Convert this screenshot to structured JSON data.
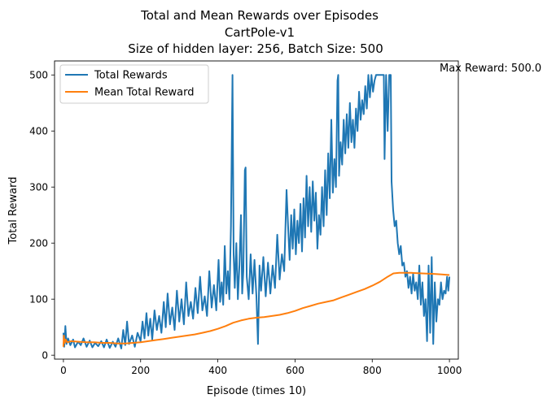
{
  "chart_data": {
    "type": "line",
    "title_lines": [
      "Total and Mean Rewards over Episodes",
      "CartPole-v1",
      "Size of hidden layer: 256, Batch Size: 500"
    ],
    "xlabel": "Episode (times 10)",
    "ylabel": "Total Reward",
    "xlim": [
      -23,
      1023
    ],
    "ylim": [
      -7,
      525
    ],
    "xticks": [
      0,
      200,
      400,
      600,
      800,
      1000
    ],
    "yticks": [
      0,
      100,
      200,
      300,
      400,
      500
    ],
    "legend_position": "upper-left",
    "annotation": "Max Reward: 500.0",
    "grid": false,
    "series": [
      {
        "name": "Total Rewards",
        "color": "#1f77b4",
        "points": [
          [
            0,
            40
          ],
          [
            2,
            15
          ],
          [
            5,
            52
          ],
          [
            8,
            20
          ],
          [
            12,
            30
          ],
          [
            18,
            18
          ],
          [
            25,
            28
          ],
          [
            30,
            14
          ],
          [
            38,
            24
          ],
          [
            45,
            18
          ],
          [
            52,
            30
          ],
          [
            60,
            15
          ],
          [
            68,
            26
          ],
          [
            75,
            14
          ],
          [
            82,
            22
          ],
          [
            90,
            16
          ],
          [
            98,
            25
          ],
          [
            105,
            14
          ],
          [
            112,
            28
          ],
          [
            120,
            13
          ],
          [
            128,
            24
          ],
          [
            135,
            15
          ],
          [
            142,
            30
          ],
          [
            150,
            12
          ],
          [
            155,
            45
          ],
          [
            160,
            18
          ],
          [
            165,
            60
          ],
          [
            170,
            20
          ],
          [
            178,
            35
          ],
          [
            185,
            15
          ],
          [
            192,
            40
          ],
          [
            200,
            25
          ],
          [
            205,
            60
          ],
          [
            210,
            30
          ],
          [
            215,
            75
          ],
          [
            220,
            35
          ],
          [
            225,
            65
          ],
          [
            230,
            28
          ],
          [
            236,
            80
          ],
          [
            242,
            45
          ],
          [
            248,
            70
          ],
          [
            254,
            40
          ],
          [
            260,
            95
          ],
          [
            265,
            50
          ],
          [
            270,
            110
          ],
          [
            276,
            55
          ],
          [
            282,
            85
          ],
          [
            288,
            45
          ],
          [
            294,
            115
          ],
          [
            300,
            60
          ],
          [
            306,
            100
          ],
          [
            312,
            55
          ],
          [
            318,
            130
          ],
          [
            324,
            70
          ],
          [
            330,
            95
          ],
          [
            336,
            65
          ],
          [
            342,
            120
          ],
          [
            348,
            75
          ],
          [
            354,
            140
          ],
          [
            360,
            80
          ],
          [
            366,
            105
          ],
          [
            372,
            70
          ],
          [
            378,
            150
          ],
          [
            384,
            85
          ],
          [
            390,
            125
          ],
          [
            396,
            80
          ],
          [
            402,
            170
          ],
          [
            406,
            95
          ],
          [
            410,
            130
          ],
          [
            414,
            90
          ],
          [
            418,
            195
          ],
          [
            422,
            110
          ],
          [
            426,
            150
          ],
          [
            430,
            100
          ],
          [
            434,
            230
          ],
          [
            438,
            500
          ],
          [
            441,
            180
          ],
          [
            444,
            120
          ],
          [
            448,
            200
          ],
          [
            452,
            100
          ],
          [
            456,
            160
          ],
          [
            460,
            250
          ],
          [
            463,
            110
          ],
          [
            466,
            150
          ],
          [
            470,
            330
          ],
          [
            472,
            335
          ],
          [
            475,
            140
          ],
          [
            480,
            100
          ],
          [
            485,
            180
          ],
          [
            490,
            110
          ],
          [
            495,
            170
          ],
          [
            500,
            105
          ],
          [
            504,
            20
          ],
          [
            508,
            160
          ],
          [
            512,
            115
          ],
          [
            518,
            175
          ],
          [
            524,
            105
          ],
          [
            530,
            165
          ],
          [
            536,
            110
          ],
          [
            542,
            160
          ],
          [
            548,
            120
          ],
          [
            554,
            215
          ],
          [
            560,
            135
          ],
          [
            566,
            180
          ],
          [
            572,
            150
          ],
          [
            578,
            295
          ],
          [
            582,
            230
          ],
          [
            586,
            170
          ],
          [
            590,
            250
          ],
          [
            594,
            190
          ],
          [
            598,
            260
          ],
          [
            602,
            180
          ],
          [
            606,
            240
          ],
          [
            610,
            200
          ],
          [
            614,
            270
          ],
          [
            618,
            185
          ],
          [
            622,
            280
          ],
          [
            626,
            210
          ],
          [
            630,
            320
          ],
          [
            634,
            230
          ],
          [
            638,
            300
          ],
          [
            642,
            220
          ],
          [
            646,
            310
          ],
          [
            650,
            240
          ],
          [
            654,
            290
          ],
          [
            658,
            190
          ],
          [
            662,
            250
          ],
          [
            666,
            215
          ],
          [
            670,
            300
          ],
          [
            674,
            230
          ],
          [
            678,
            330
          ],
          [
            682,
            250
          ],
          [
            686,
            360
          ],
          [
            690,
            280
          ],
          [
            694,
            420
          ],
          [
            698,
            290
          ],
          [
            702,
            350
          ],
          [
            706,
            300
          ],
          [
            710,
            490
          ],
          [
            712,
            500
          ],
          [
            714,
            320
          ],
          [
            718,
            380
          ],
          [
            722,
            340
          ],
          [
            726,
            420
          ],
          [
            730,
            360
          ],
          [
            734,
            430
          ],
          [
            738,
            370
          ],
          [
            742,
            450
          ],
          [
            746,
            380
          ],
          [
            750,
            420
          ],
          [
            754,
            370
          ],
          [
            758,
            440
          ],
          [
            762,
            400
          ],
          [
            766,
            470
          ],
          [
            770,
            420
          ],
          [
            774,
            455
          ],
          [
            778,
            430
          ],
          [
            782,
            480
          ],
          [
            786,
            440
          ],
          [
            790,
            500
          ],
          [
            794,
            460
          ],
          [
            798,
            500
          ],
          [
            802,
            470
          ],
          [
            806,
            490
          ],
          [
            810,
            500
          ],
          [
            830,
            500
          ],
          [
            832,
            350
          ],
          [
            836,
            500
          ],
          [
            840,
            400
          ],
          [
            844,
            500
          ],
          [
            848,
            500
          ],
          [
            850,
            310
          ],
          [
            854,
            260
          ],
          [
            858,
            230
          ],
          [
            862,
            240
          ],
          [
            866,
            200
          ],
          [
            870,
            180
          ],
          [
            874,
            195
          ],
          [
            878,
            160
          ],
          [
            882,
            165
          ],
          [
            886,
            140
          ],
          [
            890,
            150
          ],
          [
            894,
            120
          ],
          [
            898,
            140
          ],
          [
            902,
            110
          ],
          [
            906,
            145
          ],
          [
            910,
            115
          ],
          [
            914,
            130
          ],
          [
            918,
            100
          ],
          [
            922,
            160
          ],
          [
            926,
            90
          ],
          [
            930,
            130
          ],
          [
            934,
            70
          ],
          [
            938,
            100
          ],
          [
            942,
            25
          ],
          [
            946,
            160
          ],
          [
            950,
            40
          ],
          [
            954,
            175
          ],
          [
            958,
            20
          ],
          [
            962,
            130
          ],
          [
            966,
            60
          ],
          [
            970,
            100
          ],
          [
            974,
            90
          ],
          [
            978,
            130
          ],
          [
            982,
            100
          ],
          [
            986,
            115
          ],
          [
            990,
            110
          ],
          [
            994,
            140
          ],
          [
            997,
            115
          ],
          [
            1000,
            140
          ]
        ]
      },
      {
        "name": "Mean Total Reward",
        "color": "#ff7f0e",
        "points": [
          [
            0,
            15
          ],
          [
            1,
            35
          ],
          [
            3,
            22
          ],
          [
            6,
            28
          ],
          [
            10,
            23
          ],
          [
            20,
            25
          ],
          [
            40,
            24
          ],
          [
            60,
            23
          ],
          [
            80,
            23
          ],
          [
            100,
            22
          ],
          [
            120,
            22
          ],
          [
            140,
            21
          ],
          [
            160,
            21
          ],
          [
            180,
            22
          ],
          [
            200,
            23
          ],
          [
            220,
            25
          ],
          [
            240,
            27
          ],
          [
            260,
            29
          ],
          [
            280,
            31
          ],
          [
            300,
            33
          ],
          [
            320,
            35
          ],
          [
            340,
            37
          ],
          [
            360,
            40
          ],
          [
            380,
            43
          ],
          [
            400,
            47
          ],
          [
            420,
            52
          ],
          [
            440,
            58
          ],
          [
            460,
            62
          ],
          [
            480,
            65
          ],
          [
            500,
            67
          ],
          [
            520,
            68
          ],
          [
            540,
            70
          ],
          [
            560,
            72
          ],
          [
            580,
            75
          ],
          [
            600,
            79
          ],
          [
            620,
            84
          ],
          [
            640,
            88
          ],
          [
            660,
            92
          ],
          [
            680,
            95
          ],
          [
            700,
            98
          ],
          [
            720,
            103
          ],
          [
            740,
            108
          ],
          [
            760,
            113
          ],
          [
            780,
            118
          ],
          [
            800,
            124
          ],
          [
            820,
            131
          ],
          [
            840,
            140
          ],
          [
            855,
            146
          ],
          [
            870,
            147
          ],
          [
            900,
            147
          ],
          [
            930,
            146
          ],
          [
            960,
            145
          ],
          [
            980,
            144
          ],
          [
            1000,
            143
          ]
        ]
      }
    ]
  }
}
